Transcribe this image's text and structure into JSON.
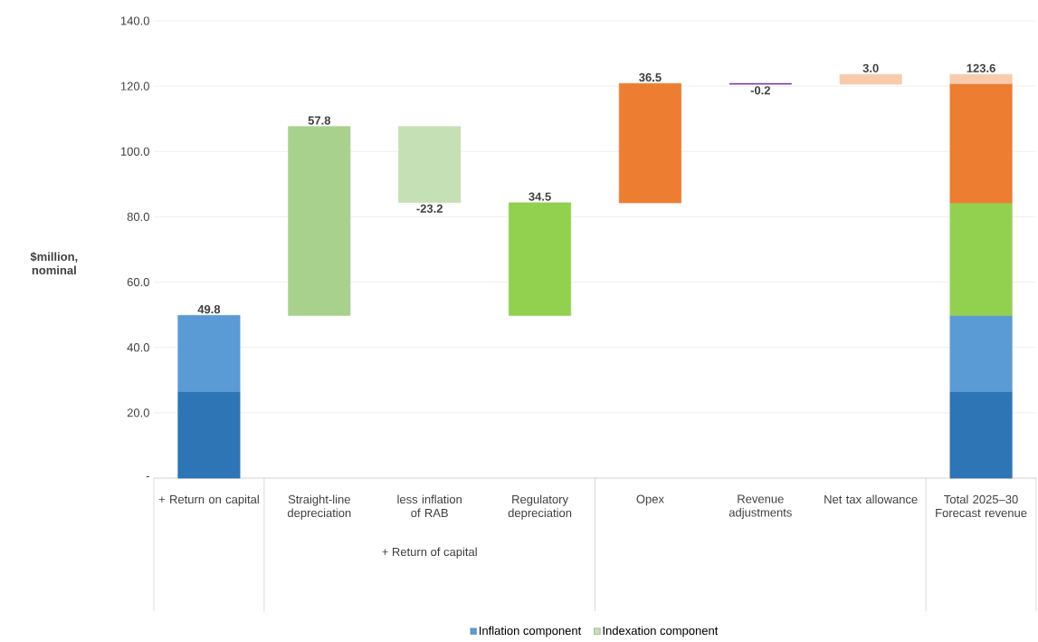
{
  "chart_data": {
    "type": "bar",
    "ylabel": "$million, nominal",
    "categories": [
      "+ Return on capital",
      "Straight-line depreciation",
      "less inflation of RAB",
      "Regulatory depreciation",
      "Opex",
      "Revenue adjustments",
      "Net tax allowance",
      "Total 2025–30 Forecast revenue"
    ],
    "series": [
      {
        "color": "#2e75b6",
        "values": [
          26.5,
          null,
          null,
          null,
          null,
          null,
          null,
          26.5
        ],
        "base": [
          0,
          null,
          null,
          null,
          null,
          null,
          null,
          0
        ]
      },
      {
        "name": "Inflation component",
        "color": "#5b9bd5",
        "values": [
          23.3,
          null,
          null,
          null,
          null,
          null,
          null,
          23.3
        ],
        "base": [
          26.5,
          null,
          null,
          null,
          null,
          null,
          null,
          26.5
        ]
      },
      {
        "color": "#a9d18e",
        "values": [
          null,
          57.8,
          null,
          null,
          null,
          null,
          null,
          null
        ],
        "base": [
          null,
          49.8,
          null,
          null,
          null,
          null,
          null,
          null
        ],
        "value_labels": [
          null,
          "57.8",
          null,
          null,
          null,
          null,
          null,
          null
        ]
      },
      {
        "name": "Indexation component",
        "color": "#c5e0b4",
        "values": [
          null,
          null,
          -23.2,
          null,
          null,
          null,
          null,
          null
        ],
        "base": [
          null,
          null,
          107.6,
          null,
          null,
          null,
          null,
          null
        ],
        "value_labels": [
          null,
          null,
          "-23.2",
          null,
          null,
          null,
          null,
          null
        ]
      },
      {
        "color": "#92d050",
        "values": [
          null,
          null,
          null,
          34.5,
          null,
          null,
          null,
          34.5
        ],
        "base": [
          null,
          null,
          null,
          49.8,
          null,
          null,
          null,
          49.8
        ],
        "value_labels": [
          null,
          null,
          null,
          "34.5",
          null,
          null,
          null,
          null
        ]
      },
      {
        "color": "#ed7d31",
        "values": [
          null,
          null,
          null,
          null,
          36.5,
          null,
          null,
          36.5
        ],
        "base": [
          null,
          null,
          null,
          null,
          84.3,
          null,
          null,
          84.3
        ],
        "value_labels": [
          null,
          null,
          null,
          null,
          "36.5",
          null,
          null,
          null
        ]
      },
      {
        "color": "#7030a0",
        "values": [
          null,
          null,
          null,
          null,
          null,
          -0.2,
          null,
          null
        ],
        "base": [
          null,
          null,
          null,
          null,
          null,
          120.8,
          null,
          null
        ],
        "value_labels": [
          null,
          null,
          null,
          null,
          null,
          "-0.2",
          null,
          null
        ]
      },
      {
        "color": "#f8cbad",
        "values": [
          null,
          null,
          null,
          null,
          null,
          null,
          3.0,
          2.8
        ],
        "base": [
          null,
          null,
          null,
          null,
          null,
          null,
          120.6,
          120.8
        ],
        "value_labels": [
          null,
          null,
          null,
          null,
          null,
          null,
          "3.0",
          null
        ]
      }
    ],
    "totals": [
      "49.8",
      null,
      null,
      null,
      null,
      null,
      null,
      "123.6"
    ],
    "ylim": [
      0,
      140
    ],
    "yticks": [
      {
        "value": 0,
        "label": "-"
      },
      {
        "value": 20,
        "label": "20.0"
      },
      {
        "value": 40,
        "label": "40.0"
      },
      {
        "value": 60,
        "label": "60.0"
      },
      {
        "value": 80,
        "label": "80.0"
      },
      {
        "value": 100,
        "label": "100.0"
      },
      {
        "value": 120,
        "label": "120.0"
      },
      {
        "value": 140,
        "label": "140.0"
      }
    ],
    "grid": "y",
    "legend": "bottom",
    "annotations": [
      "+ Return of capital"
    ]
  }
}
